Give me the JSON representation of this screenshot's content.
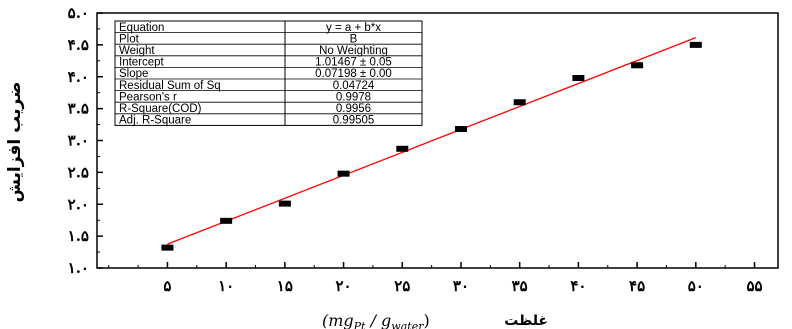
{
  "chart_data": {
    "type": "scatter",
    "x": [
      5,
      10,
      15,
      20,
      25,
      30,
      35,
      40,
      45,
      50
    ],
    "y": [
      1.32,
      1.74,
      2.01,
      2.48,
      2.87,
      3.18,
      3.6,
      3.98,
      4.18,
      4.5
    ],
    "fit": {
      "intercept": 1.01467,
      "slope": 0.07198,
      "x_range": [
        5,
        50
      ]
    },
    "xlim": [
      -1,
      57
    ],
    "ylim": [
      1.0,
      5.0
    ],
    "x_ticks": [
      5,
      10,
      15,
      20,
      25,
      30,
      35,
      40,
      45,
      50,
      55
    ],
    "x_tick_labels": [
      "۵",
      "۱۰",
      "۱۵",
      "۲۰",
      "۲۵",
      "۳۰",
      "۳۵",
      "۴۰",
      "۴۵",
      "۵۰",
      "۵۵"
    ],
    "y_ticks": [
      1.0,
      1.5,
      2.0,
      2.5,
      3.0,
      3.5,
      4.0,
      4.5,
      5.0
    ],
    "y_tick_labels": [
      "۱.۰",
      "۱.۵",
      "۲.۰",
      "۲.۵",
      "۳.۰",
      "۳.۵",
      "۴.۰",
      "۴.۵",
      "۵.۰"
    ],
    "ylabel": "ضریب افزایش",
    "xlabel_fa": "غلظت",
    "xlabel_math": "(mg",
    "xlabel_sub1": "Pt",
    "xlabel_mid": " / g",
    "xlabel_sub2": "water",
    "xlabel_end": ")",
    "stats_table": [
      [
        "Equation",
        "y = a + b*x"
      ],
      [
        "Plot",
        "B"
      ],
      [
        "Weight",
        "No Weighting"
      ],
      [
        "Intercept",
        "1.01467 ± 0.05"
      ],
      [
        "Slope",
        "0.07198 ± 0.00"
      ],
      [
        "Residual Sum of Sq",
        "0.04724"
      ],
      [
        "Pearson's r",
        "0.9978"
      ],
      [
        "R-Square(COD)",
        "0.9956"
      ],
      [
        "Adj. R-Square",
        "0.99505"
      ]
    ],
    "marker_color": "#000000",
    "fit_color": "#ff0000"
  }
}
